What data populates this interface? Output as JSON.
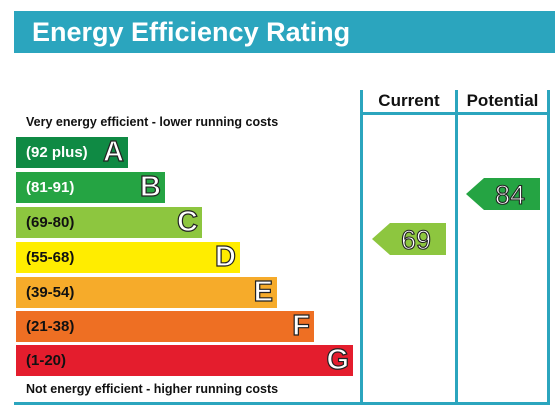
{
  "title": "Energy Efficiency Rating",
  "columns": {
    "current": "Current",
    "potential": "Potential"
  },
  "top_caption": "Very energy efficient - lower running costs",
  "bottom_caption": "Not energy efficient - higher running costs",
  "bands": [
    {
      "range": "(92 plus)",
      "letter": "A",
      "color": "#0f8a44",
      "text_color": "#ffffff"
    },
    {
      "range": "(81-91)",
      "letter": "B",
      "color": "#25a443",
      "text_color": "#ffffff"
    },
    {
      "range": "(69-80)",
      "letter": "C",
      "color": "#8dc63f",
      "text_color": "#111111"
    },
    {
      "range": "(55-68)",
      "letter": "D",
      "color": "#ffed00",
      "text_color": "#111111"
    },
    {
      "range": "(39-54)",
      "letter": "E",
      "color": "#f6ab2a",
      "text_color": "#111111"
    },
    {
      "range": "(21-38)",
      "letter": "F",
      "color": "#ee6f23",
      "text_color": "#111111"
    },
    {
      "range": "(1-20)",
      "letter": "G",
      "color": "#e41d2d",
      "text_color": "#111111"
    }
  ],
  "current": {
    "value": "69",
    "band": "C",
    "color": "#8dc63f"
  },
  "potential": {
    "value": "84",
    "band": "B",
    "color": "#25a443"
  },
  "accent": "#2ba5be"
}
